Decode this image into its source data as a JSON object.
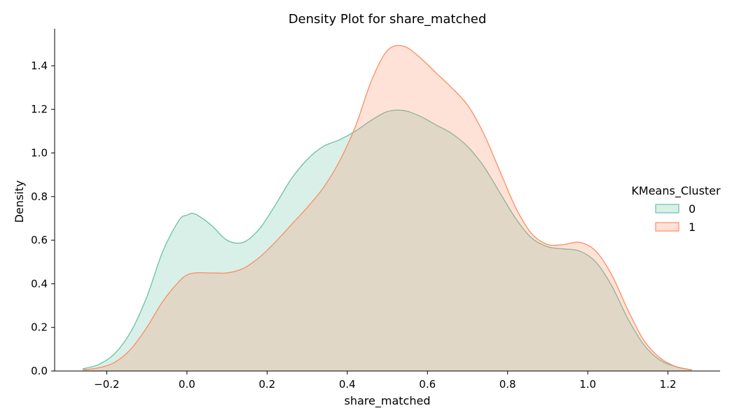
{
  "chart_data": {
    "type": "area",
    "title": "Density Plot for share_matched",
    "xlabel": "share_matched",
    "ylabel": "Density",
    "xlim": [
      -0.33,
      1.33
    ],
    "ylim": [
      0,
      1.57
    ],
    "xticks": [
      -0.2,
      0.0,
      0.2,
      0.4,
      0.6,
      0.8,
      1.0,
      1.2
    ],
    "xtick_labels": [
      "−0.2",
      "0.0",
      "0.2",
      "0.4",
      "0.6",
      "0.8",
      "1.0",
      "1.2"
    ],
    "yticks": [
      0.0,
      0.2,
      0.4,
      0.6,
      0.8,
      1.0,
      1.2,
      1.4
    ],
    "ytick_labels": [
      "0.0",
      "0.2",
      "0.4",
      "0.6",
      "0.8",
      "1.0",
      "1.2",
      "1.4"
    ],
    "grid": false,
    "legend": {
      "title": "KMeans_Cluster",
      "placement": "right"
    },
    "series": [
      {
        "name": "0",
        "color": "#66c2a5",
        "x": [
          -0.26,
          -0.22,
          -0.18,
          -0.14,
          -0.1,
          -0.06,
          -0.02,
          0.0,
          0.02,
          0.06,
          0.1,
          0.14,
          0.18,
          0.22,
          0.26,
          0.3,
          0.34,
          0.38,
          0.42,
          0.46,
          0.5,
          0.54,
          0.58,
          0.62,
          0.66,
          0.7,
          0.74,
          0.78,
          0.82,
          0.86,
          0.9,
          0.94,
          0.98,
          1.02,
          1.06,
          1.1,
          1.14,
          1.18,
          1.22,
          1.26
        ],
        "y": [
          0.01,
          0.03,
          0.08,
          0.18,
          0.34,
          0.55,
          0.69,
          0.715,
          0.72,
          0.67,
          0.6,
          0.59,
          0.65,
          0.76,
          0.88,
          0.97,
          1.03,
          1.06,
          1.1,
          1.15,
          1.19,
          1.195,
          1.17,
          1.13,
          1.09,
          1.03,
          0.94,
          0.82,
          0.7,
          0.61,
          0.57,
          0.56,
          0.55,
          0.5,
          0.39,
          0.24,
          0.12,
          0.05,
          0.02,
          0.005
        ]
      },
      {
        "name": "1",
        "color": "#fc8d62",
        "x": [
          -0.26,
          -0.22,
          -0.18,
          -0.14,
          -0.1,
          -0.06,
          -0.02,
          0.0,
          0.02,
          0.06,
          0.1,
          0.14,
          0.18,
          0.22,
          0.26,
          0.3,
          0.34,
          0.38,
          0.42,
          0.46,
          0.5,
          0.54,
          0.58,
          0.62,
          0.66,
          0.7,
          0.74,
          0.78,
          0.82,
          0.86,
          0.9,
          0.94,
          0.98,
          1.02,
          1.06,
          1.1,
          1.14,
          1.18,
          1.22,
          1.26
        ],
        "y": [
          0.005,
          0.015,
          0.04,
          0.1,
          0.2,
          0.32,
          0.41,
          0.44,
          0.45,
          0.45,
          0.45,
          0.47,
          0.52,
          0.59,
          0.67,
          0.75,
          0.84,
          0.96,
          1.12,
          1.33,
          1.47,
          1.49,
          1.44,
          1.37,
          1.3,
          1.22,
          1.09,
          0.92,
          0.75,
          0.63,
          0.58,
          0.58,
          0.59,
          0.55,
          0.44,
          0.28,
          0.14,
          0.06,
          0.02,
          0.005
        ]
      }
    ]
  }
}
